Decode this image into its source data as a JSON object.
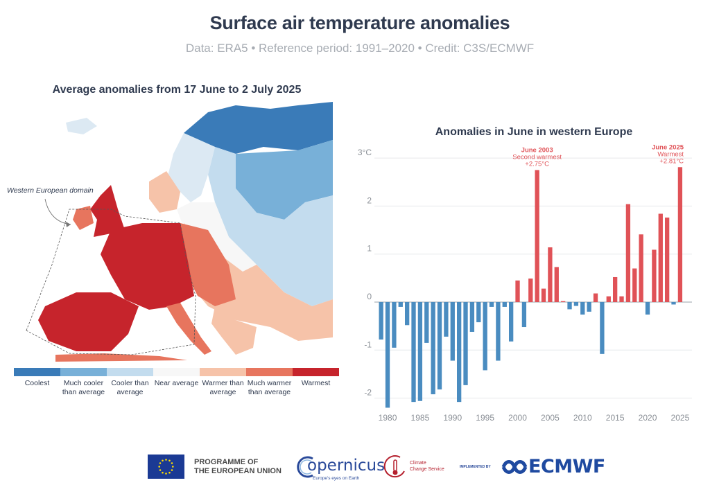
{
  "header": {
    "title": "Surface air temperature anomalies",
    "subtitle": "Data: ERA5 • Reference period: 1991–2020 • Credit: C3S/ECMWF"
  },
  "map": {
    "title": "Average anomalies from 17 June to 2 July 2025",
    "annotation": "Western European domain",
    "legend": [
      {
        "label": "Coolest",
        "color": "#3a7bb8"
      },
      {
        "label": "Much cooler than average",
        "color": "#78b0d8"
      },
      {
        "label": "Cooler than average",
        "color": "#c3dcee"
      },
      {
        "label": "Near average",
        "color": "#f7f7f7"
      },
      {
        "label": "Warmer than average",
        "color": "#f6c3a9"
      },
      {
        "label": "Much warmer than average",
        "color": "#e7755e"
      },
      {
        "label": "Warmest",
        "color": "#c6242c"
      }
    ]
  },
  "chart_data": {
    "type": "bar",
    "title": "Anomalies in June in western Europe",
    "ylabel": "°C",
    "ylim": [
      -2.2,
      3.0
    ],
    "yticks": [
      {
        "value": 3,
        "label": "3°C"
      },
      {
        "value": 2,
        "label": "2"
      },
      {
        "value": 1,
        "label": "1"
      },
      {
        "value": 0,
        "label": "0"
      },
      {
        "value": -1,
        "label": "-1"
      },
      {
        "value": -2,
        "label": "-2"
      }
    ],
    "xticks": [
      1980,
      1985,
      1990,
      1995,
      2000,
      2005,
      2010,
      2015,
      2020,
      2025
    ],
    "years": [
      1979,
      1980,
      1981,
      1982,
      1983,
      1984,
      1985,
      1986,
      1987,
      1988,
      1989,
      1990,
      1991,
      1992,
      1993,
      1994,
      1995,
      1996,
      1997,
      1998,
      1999,
      2000,
      2001,
      2002,
      2003,
      2004,
      2005,
      2006,
      2007,
      2008,
      2009,
      2010,
      2011,
      2012,
      2013,
      2014,
      2015,
      2016,
      2017,
      2018,
      2019,
      2020,
      2021,
      2022,
      2023,
      2024,
      2025
    ],
    "values": [
      -0.78,
      -2.2,
      -0.95,
      -0.1,
      -0.48,
      -2.08,
      -2.06,
      -0.85,
      -1.92,
      -1.82,
      -0.72,
      -1.22,
      -2.08,
      -1.73,
      -0.62,
      -0.42,
      -1.42,
      -0.1,
      -1.22,
      -0.1,
      -0.82,
      0.45,
      -0.52,
      0.49,
      2.75,
      0.28,
      1.14,
      0.73,
      0.02,
      -0.15,
      -0.08,
      -0.26,
      -0.2,
      0.18,
      -1.08,
      0.12,
      0.52,
      0.12,
      2.04,
      0.7,
      1.41,
      -0.26,
      1.09,
      1.84,
      1.76,
      -0.05,
      2.81
    ],
    "positive_color": "#e05257",
    "negative_color": "#4a8cc0",
    "annotations": [
      {
        "year": 2003,
        "label": "June 2003",
        "line2": "Second warmest",
        "line3": "+2.75°C",
        "color": "#e05257"
      },
      {
        "year": 2025,
        "label": "June 2025",
        "line2": "Warmest",
        "line3": "+2.81°C",
        "color": "#e05257"
      }
    ]
  },
  "footer": {
    "eu_line1": "PROGRAMME OF",
    "eu_line2": "THE EUROPEAN UNION",
    "copernicus": "opernicus",
    "copernicus_tagline": "Europe's eyes on Earth",
    "c3s_line1": "Climate",
    "c3s_line2": "Change Service",
    "implemented_by": "IMPLEMENTED BY",
    "ecmwf": "ECMWF"
  }
}
